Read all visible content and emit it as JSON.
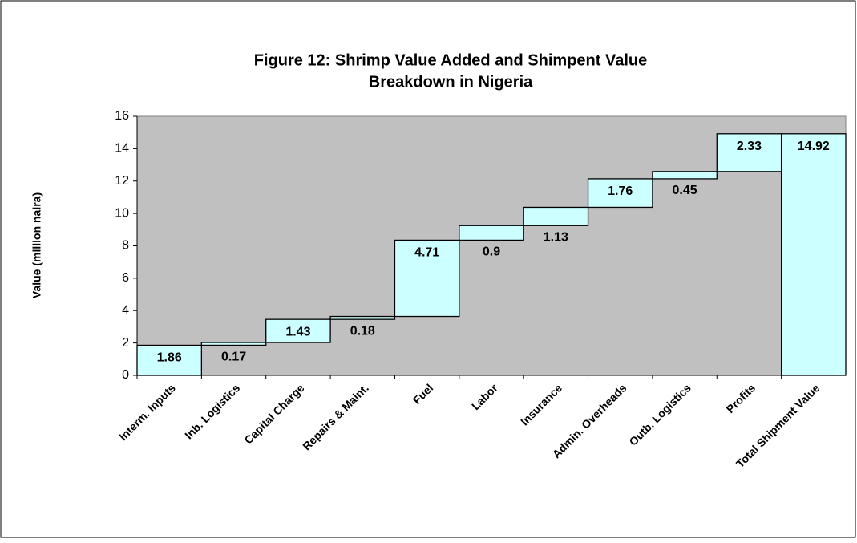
{
  "chart_data": {
    "type": "waterfall",
    "title": [
      "Figure 12: Shrimp Value Added and Shimpent Value",
      "Breakdown in Nigeria"
    ],
    "y_label": "Value (million naira)",
    "categories": [
      "Interm. Inputs",
      "Inb. Logistics",
      "Capital Charge",
      "Repairs & Maint.",
      "Fuel",
      "Labor",
      "Insurance",
      "Admin. Overheads",
      "Outb. Logistics",
      "Profits",
      "Total Shipment Value"
    ],
    "values": [
      1.86,
      0.17,
      1.43,
      0.18,
      4.71,
      0.9,
      1.13,
      1.76,
      0.45,
      2.33,
      14.92
    ],
    "measure": [
      "relative",
      "relative",
      "relative",
      "relative",
      "relative",
      "relative",
      "relative",
      "relative",
      "relative",
      "relative",
      "total"
    ],
    "color": "#ccffff",
    "background": "#c0c0c0",
    "ylim": [
      0,
      16
    ],
    "yticks": [
      0,
      2,
      4,
      6,
      8,
      10,
      12,
      14,
      16
    ],
    "grid": false
  }
}
